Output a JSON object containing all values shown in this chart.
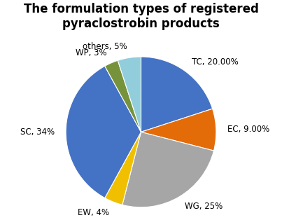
{
  "title": "The formulation types of registered\npyraclostrobin products",
  "slices": [
    {
      "label": "TC, 20.00%",
      "value": 20,
      "color": "#4472C4"
    },
    {
      "label": "EC, 9.00%",
      "value": 9,
      "color": "#E36C09"
    },
    {
      "label": "WG, 25%",
      "value": 25,
      "color": "#A6A6A6"
    },
    {
      "label": "EW, 4%",
      "value": 4,
      "color": "#F0C000"
    },
    {
      "label": "SC, 34%",
      "value": 34,
      "color": "#4472C4"
    },
    {
      "label": "WP, 3%",
      "value": 3,
      "color": "#76933C"
    },
    {
      "label": "others, 5%",
      "value": 5,
      "color": "#92CDDC"
    }
  ],
  "title_fontsize": 12,
  "label_fontsize": 8.5,
  "background_color": "#FFFFFF",
  "startangle": 90,
  "figsize": [
    4.03,
    3.14
  ],
  "dpi": 100
}
